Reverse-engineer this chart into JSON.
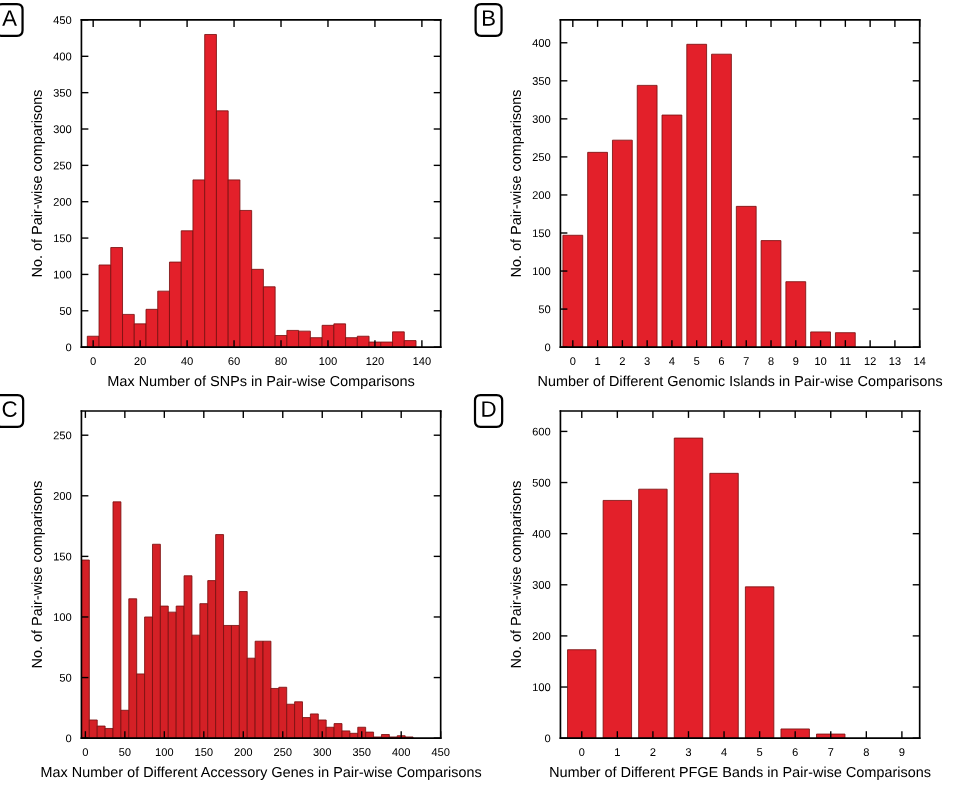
{
  "chart_data": [
    {
      "type": "histogram",
      "title": "A",
      "xlabel": "Max Number of SNPs in Pair-wise Comparisons",
      "ylabel": "No. of Pair-wise comparisons",
      "color": "#e3202a",
      "bins": [
        -2.5,
        2.5,
        7.5,
        12.5,
        17.5,
        22.5,
        27.5,
        32.5,
        37.5,
        42.5,
        47.5,
        52.5,
        57.5,
        62.5,
        67.5,
        72.5,
        77.5,
        82.5,
        87.5,
        92.5,
        97.5,
        102.5,
        107.5,
        112.5,
        117.5,
        122.5,
        127.5,
        132.5,
        137.5,
        142.5
      ],
      "values": [
        15,
        113,
        137,
        45,
        32,
        52,
        77,
        117,
        160,
        230,
        430,
        325,
        230,
        188,
        107,
        83,
        16,
        23,
        22,
        13,
        30,
        32,
        13,
        15,
        7,
        7,
        21,
        9,
        null
      ],
      "xlim": [
        -5,
        148
      ],
      "xticks": [
        0,
        20,
        40,
        60,
        80,
        100,
        120,
        140
      ],
      "ylim": [
        0,
        450
      ],
      "yticks": [
        0,
        50,
        100,
        150,
        200,
        250,
        300,
        350,
        400,
        450
      ],
      "grid": false,
      "legend": false
    },
    {
      "type": "bar",
      "title": "B",
      "xlabel": "Number of Different Genomic Islands in Pair-wise Comparisons",
      "ylabel": "No. of Pair-wise comparisons",
      "color": "#e3202a",
      "x": [
        0,
        1,
        2,
        3,
        4,
        5,
        6,
        7,
        8,
        9,
        10,
        11
      ],
      "values": [
        147,
        256,
        272,
        344,
        305,
        398,
        385,
        185,
        140,
        86,
        20,
        19
      ],
      "xlim": [
        -0.5,
        14
      ],
      "xticks": [
        0,
        1,
        2,
        3,
        4,
        5,
        6,
        7,
        8,
        9,
        10,
        11,
        12,
        13,
        14
      ],
      "ylim": [
        0,
        430
      ],
      "yticks": [
        0,
        50,
        100,
        150,
        200,
        250,
        300,
        350,
        400
      ],
      "grid": false,
      "legend": false
    },
    {
      "type": "histogram",
      "title": "C",
      "xlabel": "Max Number of Different Accessory Genes in Pair-wise Comparisons",
      "ylabel": "No. of Pair-wise comparisons",
      "color": "#d42026",
      "bins": [
        -5,
        5,
        15,
        25,
        35,
        45,
        55,
        65,
        75,
        85,
        95,
        105,
        115,
        125,
        135,
        145,
        155,
        165,
        175,
        185,
        195,
        205,
        215,
        225,
        235,
        245,
        255,
        265,
        275,
        285,
        295,
        305,
        315,
        325,
        335,
        345,
        355,
        365,
        375,
        385,
        395,
        405,
        415
      ],
      "values": [
        147,
        15,
        10,
        8,
        195,
        23,
        115,
        53,
        100,
        160,
        109,
        104,
        109,
        134,
        85,
        111,
        130,
        168,
        93,
        93,
        121,
        66,
        80,
        80,
        41,
        42,
        28,
        30,
        17,
        20,
        15,
        9,
        12,
        6,
        4,
        9,
        5,
        1,
        3,
        1,
        2,
        1
      ],
      "xlim": [
        -5,
        450
      ],
      "xticks": [
        0,
        50,
        100,
        150,
        200,
        250,
        300,
        350,
        400,
        450
      ],
      "ylim": [
        0,
        270
      ],
      "yticks": [
        0,
        50,
        100,
        150,
        200,
        250
      ],
      "grid": false,
      "legend": false
    },
    {
      "type": "bar",
      "title": "D",
      "xlabel": "Number of Different PFGE Bands in Pair-wise Comparisons",
      "ylabel": "No. of Pair-wise comparisons",
      "color": "#e3202a",
      "x": [
        0,
        1,
        2,
        3,
        4,
        5,
        6,
        7
      ],
      "values": [
        173,
        465,
        487,
        587,
        518,
        296,
        18,
        8
      ],
      "xlim": [
        -0.6,
        9.5
      ],
      "xticks": [
        0,
        1,
        2,
        3,
        4,
        5,
        6,
        7,
        8,
        9
      ],
      "ylim": [
        0,
        640
      ],
      "yticks": [
        0,
        100,
        200,
        300,
        400,
        500,
        600
      ],
      "grid": false,
      "legend": false
    }
  ]
}
